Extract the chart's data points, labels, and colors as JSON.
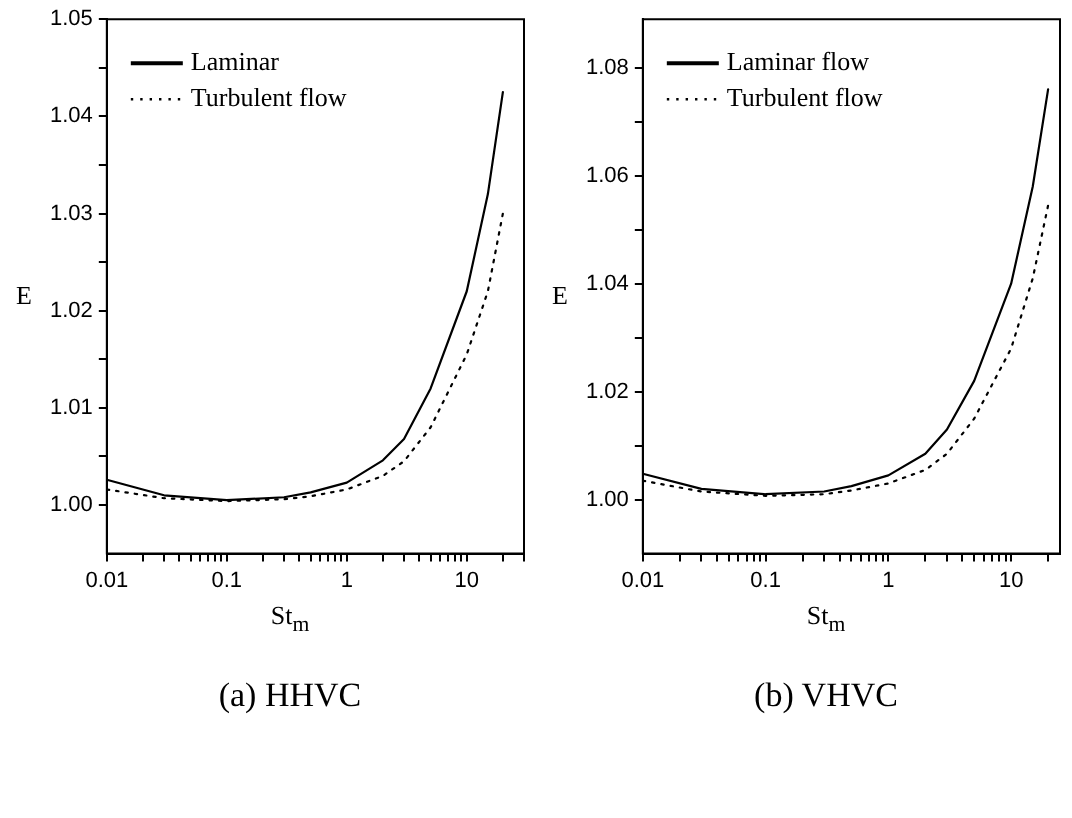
{
  "chart_data": [
    {
      "type": "line",
      "title": "(a) HHVC",
      "xlabel": "St$_{m}$",
      "ylabel": "E",
      "log": "x",
      "grid": false,
      "legend": "top left",
      "marker": "none",
      "xlim": [
        0.01,
        30
      ],
      "xticks": [
        0.01,
        {
          "value": 0.02,
          "label": null
        },
        {
          "value": 0.03,
          "label": null
        },
        {
          "value": 0.04,
          "label": null
        },
        {
          "value": 0.05,
          "label": null
        },
        {
          "value": 0.06,
          "label": null
        },
        {
          "value": 0.07,
          "label": null
        },
        {
          "value": 0.08,
          "label": null
        },
        {
          "value": 0.09,
          "label": null
        },
        0.1,
        {
          "value": 0.2,
          "label": null
        },
        {
          "value": 0.3,
          "label": null
        },
        {
          "value": 0.4,
          "label": null
        },
        {
          "value": 0.5,
          "label": null
        },
        {
          "value": 0.6,
          "label": null
        },
        {
          "value": 0.7,
          "label": null
        },
        {
          "value": 0.8,
          "label": null
        },
        {
          "value": 0.9,
          "label": null
        },
        1,
        {
          "value": 2,
          "label": null
        },
        {
          "value": 3,
          "label": null
        },
        {
          "value": 4,
          "label": null
        },
        {
          "value": 5,
          "label": null
        },
        {
          "value": 6,
          "label": null
        },
        {
          "value": 7,
          "label": null
        },
        {
          "value": 8,
          "label": null
        },
        {
          "value": 9,
          "label": null
        },
        10,
        {
          "value": 20,
          "label": null
        },
        {
          "value": 30,
          "label": null
        }
      ],
      "ylim": [
        0.995,
        1.05
      ],
      "yticks": [
        {
          "value": 1,
          "label": "1.00"
        },
        {
          "value": 1.005,
          "label": null
        },
        1.01,
        {
          "value": 1.015,
          "label": null
        },
        1.02,
        {
          "value": 1.025,
          "label": null
        },
        1.03,
        {
          "value": 1.035,
          "label": null
        },
        1.04,
        {
          "value": 1.045,
          "label": null
        },
        1.05
      ],
      "x": [
        0.01,
        0.03,
        0.1,
        0.3,
        0.5,
        1,
        2,
        3,
        5,
        10,
        15,
        20
      ],
      "series": [
        {
          "name": "Laminar",
          "color": "#000000",
          "line_style": "solid",
          "values": [
            1.0026,
            1.001,
            1.0005,
            1.0008,
            1.0013,
            1.0023,
            1.0046,
            1.0068,
            1.012,
            1.022,
            1.032,
            1.0425
          ]
        },
        {
          "name": "Turbulent flow",
          "color": "#000000",
          "line_style": "dotted",
          "values": [
            1.0016,
            1.0007,
            1.0004,
            1.0006,
            1.0009,
            1.0016,
            1.003,
            1.0045,
            1.008,
            1.0155,
            1.022,
            1.03
          ]
        }
      ]
    },
    {
      "type": "line",
      "title": "(b) VHVC",
      "xlabel": "St$_{m}$",
      "ylabel": "E",
      "log": "x",
      "grid": false,
      "legend": "top left",
      "marker": "none",
      "xlim": [
        0.01,
        25
      ],
      "xticks": [
        0.01,
        {
          "value": 0.02,
          "label": null
        },
        {
          "value": 0.03,
          "label": null
        },
        {
          "value": 0.04,
          "label": null
        },
        {
          "value": 0.05,
          "label": null
        },
        {
          "value": 0.06,
          "label": null
        },
        {
          "value": 0.07,
          "label": null
        },
        {
          "value": 0.08,
          "label": null
        },
        {
          "value": 0.09,
          "label": null
        },
        0.1,
        {
          "value": 0.2,
          "label": null
        },
        {
          "value": 0.3,
          "label": null
        },
        {
          "value": 0.4,
          "label": null
        },
        {
          "value": 0.5,
          "label": null
        },
        {
          "value": 0.6,
          "label": null
        },
        {
          "value": 0.7,
          "label": null
        },
        {
          "value": 0.8,
          "label": null
        },
        {
          "value": 0.9,
          "label": null
        },
        1,
        {
          "value": 2,
          "label": null
        },
        {
          "value": 3,
          "label": null
        },
        {
          "value": 4,
          "label": null
        },
        {
          "value": 5,
          "label": null
        },
        {
          "value": 6,
          "label": null
        },
        {
          "value": 7,
          "label": null
        },
        {
          "value": 8,
          "label": null
        },
        {
          "value": 9,
          "label": null
        },
        10,
        {
          "value": 20,
          "label": null
        }
      ],
      "ylim": [
        0.99,
        1.089
      ],
      "yticks": [
        {
          "value": 1,
          "label": "1.00"
        },
        {
          "value": 1.01,
          "label": null
        },
        1.02,
        {
          "value": 1.03,
          "label": null
        },
        1.04,
        {
          "value": 1.05,
          "label": null
        },
        1.06,
        {
          "value": 1.07,
          "label": null
        },
        1.08
      ],
      "x": [
        0.01,
        0.03,
        0.1,
        0.3,
        0.5,
        1,
        2,
        3,
        5,
        10,
        15,
        20
      ],
      "series": [
        {
          "name": "Laminar flow",
          "color": "#000000",
          "line_style": "solid",
          "values": [
            1.0048,
            1.002,
            1.001,
            1.0015,
            1.0025,
            1.0045,
            1.0085,
            1.013,
            1.022,
            1.04,
            1.058,
            1.076
          ]
        },
        {
          "name": "Turbulent flow",
          "color": "#000000",
          "line_style": "dotted",
          "values": [
            1.0035,
            1.0015,
            1.0007,
            1.001,
            1.0017,
            1.003,
            1.0055,
            1.0085,
            1.015,
            1.028,
            1.041,
            1.0545
          ]
        }
      ]
    }
  ]
}
